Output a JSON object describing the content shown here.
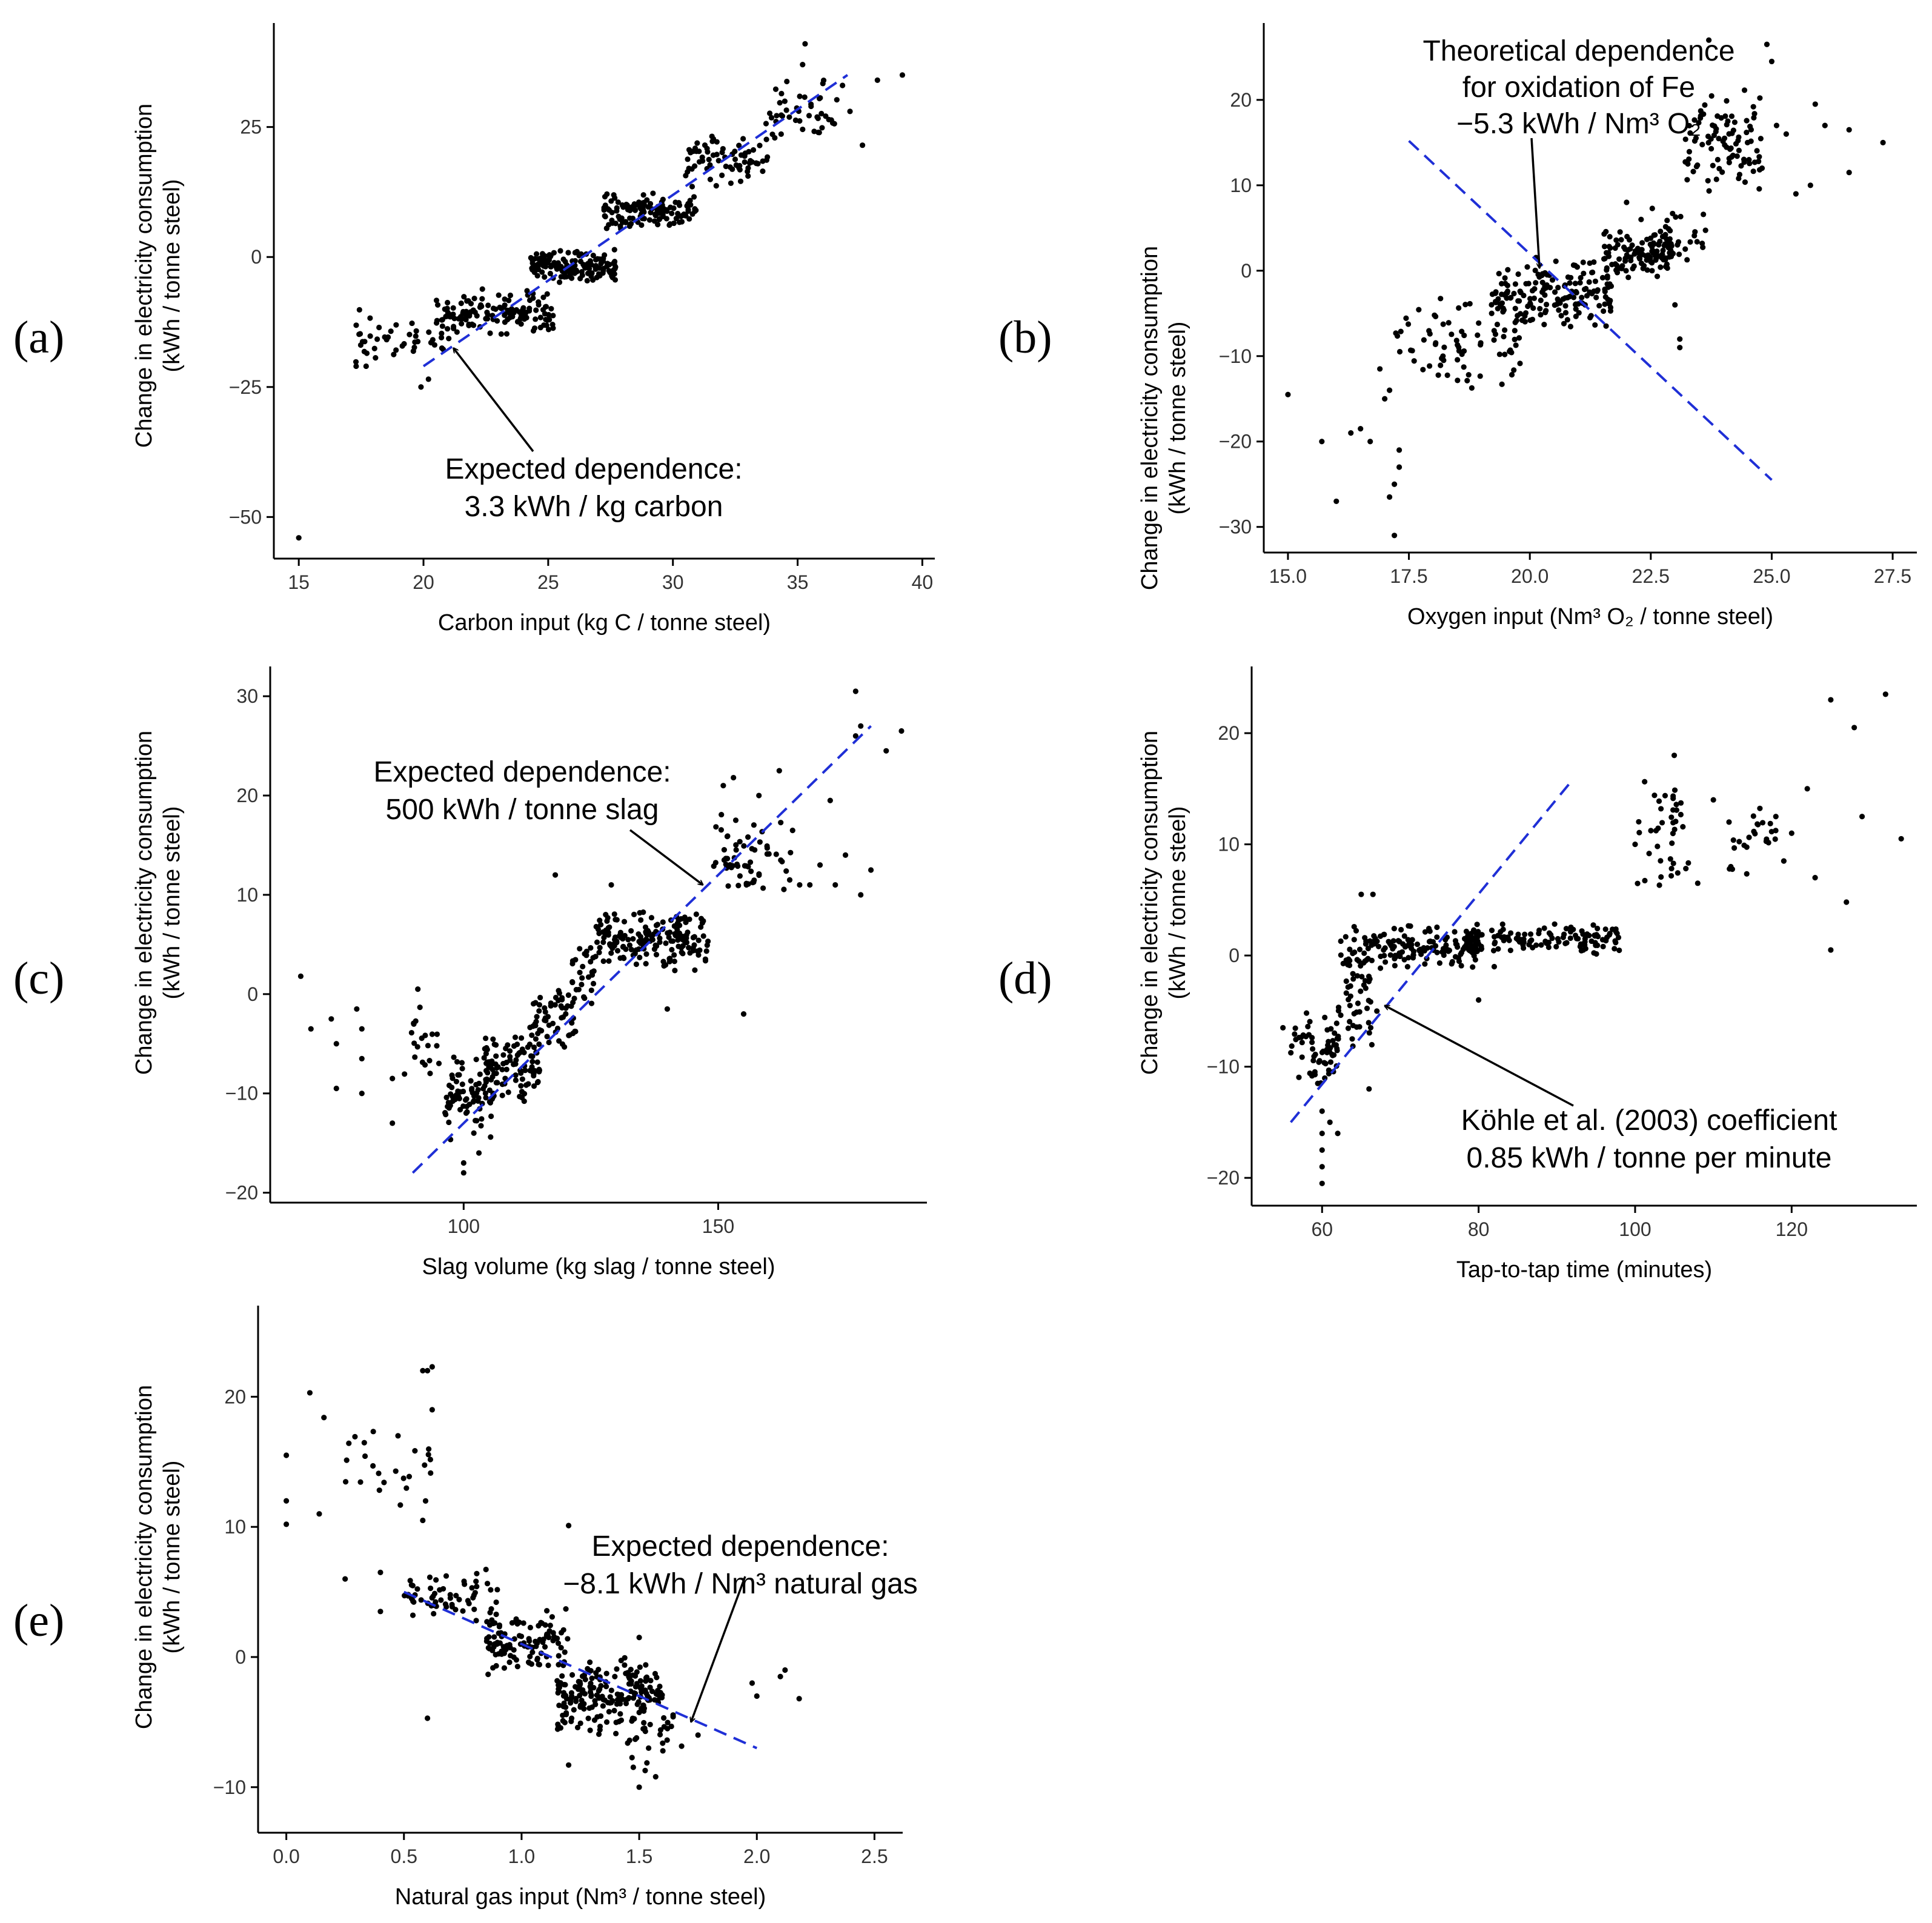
{
  "chart_data": [
    {
      "type": "scatter",
      "panel_label": "(a)",
      "xlabel": "Carbon input (kg C / tonne steel)",
      "ylabel_lines": [
        "Change in electricity consumption",
        "(kWh / tonne steel)"
      ],
      "xlim": [
        14,
        40.5
      ],
      "ylim": [
        -58,
        45
      ],
      "xticks": [
        15,
        20,
        25,
        30,
        35,
        40
      ],
      "yticks": [
        -50,
        -25,
        0,
        25
      ],
      "fit_line": {
        "x": [
          20,
          37
        ],
        "y": [
          -21,
          35
        ]
      },
      "annotation": {
        "lines": [
          "Expected dependence:",
          "3.3 kWh / kg carbon"
        ],
        "arrow_to": [
          21.2,
          -17.5
        ]
      },
      "clusters": [
        {
          "x": [
            17.2,
            20.8
          ],
          "y": [
            -22,
            -10
          ],
          "n": 40
        },
        {
          "x": [
            20.5,
            25.2
          ],
          "y": [
            -16,
            -6
          ],
          "n": 140
        },
        {
          "x": [
            24.3,
            27.7
          ],
          "y": [
            -5,
            1.5
          ],
          "n": 150
        },
        {
          "x": [
            27.2,
            31
          ],
          "y": [
            5,
            13
          ],
          "n": 130
        },
        {
          "x": [
            30.5,
            33.8
          ],
          "y": [
            13,
            24
          ],
          "n": 70
        },
        {
          "x": [
            33.5,
            36.6
          ],
          "y": [
            20,
            37
          ],
          "n": 45
        }
      ],
      "points": [
        [
          15.0,
          -54
        ],
        [
          17.3,
          -21
        ],
        [
          17.7,
          -21
        ],
        [
          19.9,
          -25
        ],
        [
          20.2,
          -23.5
        ],
        [
          33.6,
          16.5
        ],
        [
          35.3,
          41
        ],
        [
          35.2,
          37
        ],
        [
          37.6,
          21.5
        ],
        [
          38.2,
          34
        ],
        [
          39.2,
          35
        ],
        [
          36.8,
          33
        ],
        [
          37.1,
          28
        ]
      ]
    },
    {
      "type": "scatter",
      "panel_label": "(b)",
      "xlabel": "Oxygen input (Nm³ O₂ / tonne steel)",
      "ylabel_lines": [
        "Change in electricity consumption",
        "(kWh / tonne steel)"
      ],
      "xlim": [
        14.5,
        28
      ],
      "ylim": [
        -33,
        29
      ],
      "xticks": [
        15.0,
        17.5,
        20.0,
        22.5,
        25.0,
        27.5
      ],
      "yticks": [
        -30,
        -20,
        -10,
        0,
        10,
        20
      ],
      "fit_line": {
        "x": [
          17.5,
          25
        ],
        "y": [
          15.2,
          -24.5
        ]
      },
      "annotation": {
        "lines": [
          "Theoretical dependence",
          "for oxidation of Fe",
          "−5.3 kWh / Nm³ O₂"
        ],
        "arrow_to": [
          20.2,
          0.3
        ]
      },
      "clusters": [
        {
          "x": [
            17.2,
            19.8
          ],
          "y": [
            -14,
            -3
          ],
          "n": 70
        },
        {
          "x": [
            19.2,
            21.7
          ],
          "y": [
            -8,
            2
          ],
          "n": 170
        },
        {
          "x": [
            21.5,
            23
          ],
          "y": [
            -1,
            5
          ],
          "n": 110
        },
        {
          "x": [
            22.5,
            23.7
          ],
          "y": [
            0,
            8
          ],
          "n": 30
        },
        {
          "x": [
            23.2,
            24.8
          ],
          "y": [
            8,
            22
          ],
          "n": 90
        }
      ],
      "points": [
        [
          15.0,
          -14.5
        ],
        [
          15.7,
          -20
        ],
        [
          16.0,
          -27
        ],
        [
          16.3,
          -19
        ],
        [
          16.5,
          -18.5
        ],
        [
          16.7,
          -20
        ],
        [
          16.9,
          -11.5
        ],
        [
          17.0,
          -15
        ],
        [
          17.1,
          -26.5
        ],
        [
          17.2,
          -25
        ],
        [
          17.2,
          -31
        ],
        [
          17.3,
          -21
        ],
        [
          17.3,
          -23
        ],
        [
          17.1,
          -14
        ],
        [
          23.7,
          27
        ],
        [
          24.9,
          26.5
        ],
        [
          25.0,
          24.5
        ],
        [
          24.5,
          15
        ],
        [
          25.1,
          17
        ],
        [
          25.3,
          16
        ],
        [
          25.5,
          9
        ],
        [
          25.9,
          19.5
        ],
        [
          26.1,
          17
        ],
        [
          26.6,
          16.5
        ],
        [
          27.3,
          15
        ],
        [
          26.6,
          11.5
        ],
        [
          25.8,
          10
        ],
        [
          24.8,
          12
        ],
        [
          24.2,
          13.5
        ],
        [
          23.0,
          -4
        ],
        [
          23.1,
          -8
        ],
        [
          23.1,
          -9
        ],
        [
          22.0,
          8
        ],
        [
          22.3,
          6
        ]
      ]
    },
    {
      "type": "scatter",
      "panel_label": "(c)",
      "xlabel": "Slag volume (kg slag / tonne steel)",
      "ylabel_lines": [
        "Change in electricity consumption",
        "(kWh / tonne steel)"
      ],
      "xlim": [
        62,
        191
      ],
      "ylim": [
        -21,
        33
      ],
      "xticks": [
        100,
        150
      ],
      "yticks": [
        -20,
        -10,
        0,
        10,
        20,
        30
      ],
      "fit_line": {
        "x": [
          90,
          180
        ],
        "y": [
          -18,
          27
        ]
      },
      "annotation": {
        "lines": [
          "Expected dependence:",
          "500 kWh / tonne slag"
        ],
        "arrow_to": [
          147,
          11
        ]
      },
      "clusters": [
        {
          "x": [
            88,
            96
          ],
          "y": [
            -10,
            0
          ],
          "n": 20
        },
        {
          "x": [
            96,
            106
          ],
          "y": [
            -15,
            -5
          ],
          "n": 80
        },
        {
          "x": [
            104,
            115
          ],
          "y": [
            -11,
            -4
          ],
          "n": 90
        },
        {
          "x": [
            113,
            122
          ],
          "y": [
            -6,
            1
          ],
          "n": 60
        },
        {
          "x": [
            121,
            126
          ],
          "y": [
            -2,
            6
          ],
          "n": 30
        },
        {
          "x": [
            126,
            148
          ],
          "y": [
            2,
            9
          ],
          "n": 170
        },
        {
          "x": [
            149,
            165
          ],
          "y": [
            9,
            19
          ],
          "n": 60
        }
      ],
      "points": [
        [
          68,
          1.8
        ],
        [
          70,
          -3.5
        ],
        [
          74,
          -2.5
        ],
        [
          75,
          -5
        ],
        [
          75,
          -9.5
        ],
        [
          79,
          -1.5
        ],
        [
          80,
          -3.5
        ],
        [
          80,
          -6.5
        ],
        [
          80,
          -10
        ],
        [
          86,
          -8.5
        ],
        [
          86,
          -13
        ],
        [
          91,
          0.5
        ],
        [
          100,
          -17
        ],
        [
          100,
          -18
        ],
        [
          103,
          -16
        ],
        [
          102,
          -14
        ],
        [
          166,
          11
        ],
        [
          168,
          11
        ],
        [
          170,
          13
        ],
        [
          172,
          19.5
        ],
        [
          173,
          11
        ],
        [
          175,
          14
        ],
        [
          177,
          30.5
        ],
        [
          177,
          26
        ],
        [
          178,
          10
        ],
        [
          178,
          27
        ],
        [
          180,
          12.5
        ],
        [
          183,
          24.5
        ],
        [
          186,
          26.5
        ],
        [
          162,
          22.5
        ],
        [
          158,
          20
        ],
        [
          153,
          21.8
        ],
        [
          151,
          21
        ],
        [
          155,
          -2
        ],
        [
          140,
          -1.5
        ],
        [
          118,
          12
        ],
        [
          129,
          11
        ]
      ]
    },
    {
      "type": "scatter",
      "panel_label": "(d)",
      "xlabel": "Tap-to-tap time (minutes)",
      "ylabel_lines": [
        "Change in electricity consumption",
        "(kWh / tonne steel)"
      ],
      "xlim": [
        51,
        136
      ],
      "ylim": [
        -22.5,
        26
      ],
      "xticks": [
        60,
        80,
        100,
        120
      ],
      "yticks": [
        -20,
        -10,
        0,
        10,
        20
      ],
      "fit_line": {
        "x": [
          56,
          92
        ],
        "y": [
          -15,
          15.8
        ]
      },
      "annotation": {
        "lines": [
          "Köhle et al. (2003) coefficient",
          "0.85 kWh / tonne per minute"
        ],
        "arrow_to": [
          68,
          -4.5
        ]
      },
      "clusters": [
        {
          "x": [
            56,
            62
          ],
          "y": [
            -12,
            -5
          ],
          "n": 60
        },
        {
          "x": [
            62,
            66.5
          ],
          "y": [
            -9,
            4
          ],
          "n": 70
        },
        {
          "x": [
            66,
            80
          ],
          "y": [
            -1.5,
            3
          ],
          "n": 130
        },
        {
          "x": [
            78,
            98
          ],
          "y": [
            0,
            3
          ],
          "n": 130
        },
        {
          "x": [
            100,
            107
          ],
          "y": [
            6,
            16.5
          ],
          "n": 40
        },
        {
          "x": [
            112,
            118
          ],
          "y": [
            6,
            15
          ],
          "n": 25
        }
      ],
      "points": [
        [
          55,
          -6.5
        ],
        [
          60,
          -14
        ],
        [
          60,
          -16
        ],
        [
          60,
          -17.5
        ],
        [
          60,
          -19
        ],
        [
          60,
          -20.5
        ],
        [
          61,
          -15
        ],
        [
          62,
          -16
        ],
        [
          66,
          -12
        ],
        [
          65,
          5.5
        ],
        [
          66.5,
          5.5
        ],
        [
          67,
          -5
        ],
        [
          80,
          -4
        ],
        [
          82,
          -1
        ],
        [
          100,
          10
        ],
        [
          105,
          18
        ],
        [
          108,
          6.5
        ],
        [
          110,
          14
        ],
        [
          112,
          12
        ],
        [
          119,
          8.5
        ],
        [
          120,
          11
        ],
        [
          122,
          15
        ],
        [
          123,
          7
        ],
        [
          125,
          23
        ],
        [
          125,
          0.5
        ],
        [
          127,
          4.8
        ],
        [
          128,
          20.5
        ],
        [
          129,
          12.5
        ],
        [
          132,
          23.5
        ],
        [
          134,
          10.5
        ]
      ]
    },
    {
      "type": "scatter",
      "panel_label": "(e)",
      "xlabel": "Natural gas input (Nm³ / tonne steel)",
      "ylabel_lines": [
        "Change in electricity consumption",
        "(kWh / tonne steel)"
      ],
      "xlim": [
        -0.12,
        2.62
      ],
      "ylim": [
        -13.5,
        27
      ],
      "xticks": [
        0.0,
        0.5,
        1.0,
        1.5,
        2.0,
        2.5
      ],
      "yticks": [
        -10,
        0,
        10,
        20
      ],
      "fit_line": {
        "x": [
          0.5,
          2
        ],
        "y": [
          5,
          -7
        ]
      },
      "annotation": {
        "lines": [
          "Expected dependence:",
          "−8.1 kWh / Nm³ natural gas"
        ],
        "arrow_to": [
          1.72,
          -5
        ]
      },
      "clusters": [
        {
          "x": [
            0.25,
            0.62
          ],
          "y": [
            11,
            18
          ],
          "n": 25
        },
        {
          "x": [
            0.5,
            0.9
          ],
          "y": [
            2,
            7
          ],
          "n": 60
        },
        {
          "x": [
            0.85,
            1.2
          ],
          "y": [
            -2,
            4
          ],
          "n": 110
        },
        {
          "x": [
            1.15,
            1.6
          ],
          "y": [
            -6,
            0
          ],
          "n": 200
        },
        {
          "x": [
            1.4,
            1.7
          ],
          "y": [
            -9,
            -3
          ],
          "n": 30
        }
      ],
      "points": [
        [
          0.0,
          15.5
        ],
        [
          0.0,
          12
        ],
        [
          0.0,
          10.2
        ],
        [
          0.1,
          20.3
        ],
        [
          0.14,
          11
        ],
        [
          0.16,
          18.4
        ],
        [
          0.25,
          6
        ],
        [
          0.4,
          3.5
        ],
        [
          0.4,
          6.5
        ],
        [
          0.58,
          22
        ],
        [
          0.6,
          22
        ],
        [
          0.62,
          22.3
        ],
        [
          0.62,
          19
        ],
        [
          0.6,
          -4.7
        ],
        [
          0.58,
          10.5
        ],
        [
          1.2,
          -8.3
        ],
        [
          1.2,
          10.1
        ],
        [
          1.5,
          -10
        ],
        [
          1.57,
          -9.2
        ],
        [
          1.62,
          -5.5
        ],
        [
          1.75,
          -6
        ],
        [
          1.98,
          -2
        ],
        [
          2.0,
          -3
        ],
        [
          2.1,
          -1.5
        ],
        [
          2.12,
          -1
        ],
        [
          2.18,
          -3.2
        ],
        [
          1.5,
          1.5
        ],
        [
          1.54,
          -7
        ]
      ]
    }
  ]
}
